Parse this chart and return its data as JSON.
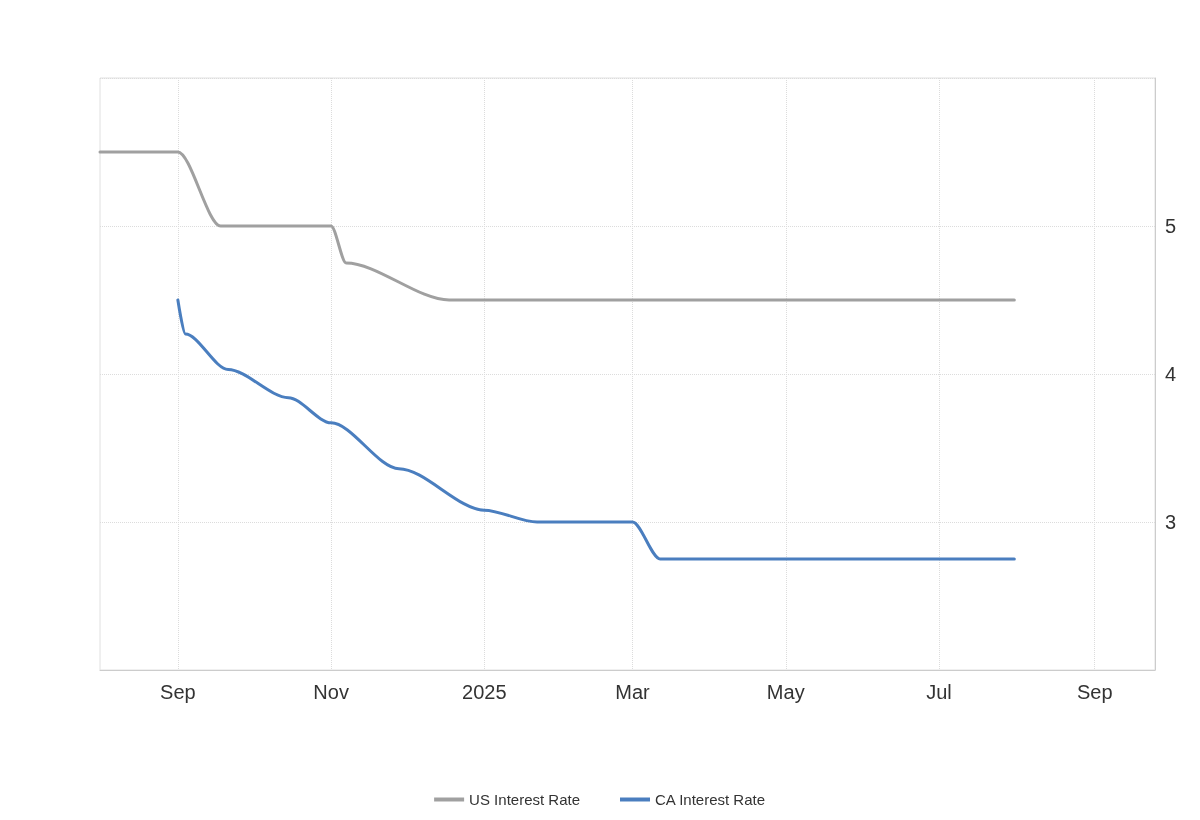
{
  "chart_data": {
    "type": "line",
    "series": [
      {
        "name": "US Interest Rate",
        "color": "#a0a0a0",
        "x": [
          "2024-08-01",
          "2024-09-01",
          "2024-09-18",
          "2024-11-01",
          "2024-11-07",
          "2024-12-18",
          "2025-07-31"
        ],
        "values": [
          5.5,
          5.5,
          5.0,
          5.0,
          4.75,
          4.5,
          4.5
        ]
      },
      {
        "name": "CA Interest Rate",
        "color": "#4a7ebf",
        "x": [
          "2024-09-01",
          "2024-09-04",
          "2024-09-21",
          "2024-10-15",
          "2024-11-01",
          "2024-11-28",
          "2025-01-01",
          "2025-01-22",
          "2025-03-01",
          "2025-03-12",
          "2025-07-31"
        ],
        "values": [
          4.5,
          4.27,
          4.03,
          3.84,
          3.67,
          3.36,
          3.08,
          3.0,
          3.0,
          2.75,
          2.75
        ]
      }
    ],
    "xlim": [
      "2024-08-01",
      "2025-09-25"
    ],
    "xticks": [
      {
        "value": "2024-09-01",
        "label": "Sep"
      },
      {
        "value": "2024-11-01",
        "label": "Nov"
      },
      {
        "value": "2025-01-01",
        "label": "2025"
      },
      {
        "value": "2025-03-01",
        "label": "Mar"
      },
      {
        "value": "2025-05-01",
        "label": "May"
      },
      {
        "value": "2025-07-01",
        "label": "Jul"
      },
      {
        "value": "2025-09-01",
        "label": "Sep"
      }
    ],
    "ylim": [
      2,
      6
    ],
    "yticks": [
      {
        "value": 2,
        "label": null
      },
      3,
      4,
      5,
      {
        "value": 6,
        "label": null
      }
    ],
    "grid": true,
    "legend": "bottom",
    "marker": "none",
    "line_style": "solid"
  }
}
